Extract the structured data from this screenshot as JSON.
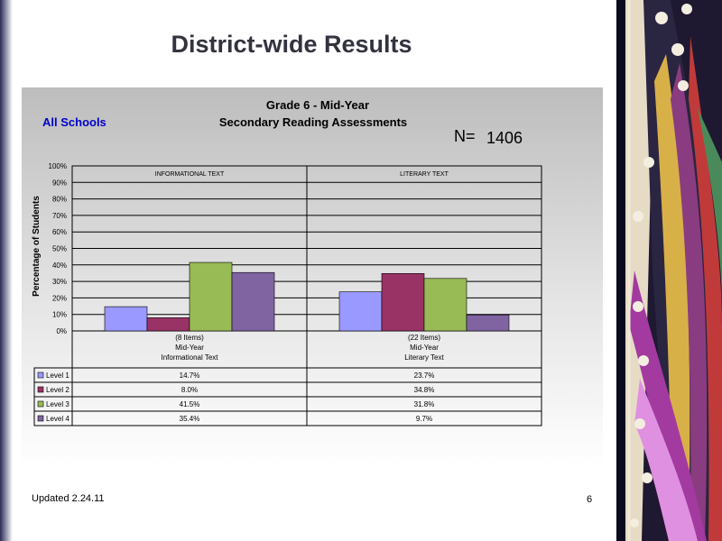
{
  "slide": {
    "title": "District-wide Results",
    "footer": "Updated  2.24.11",
    "page_number": "6"
  },
  "chart_data": {
    "type": "bar",
    "title": "Grade 6 - Mid-Year",
    "subtitle": "Secondary Reading Assessments",
    "scope_label": "All Schools",
    "n_label": "N=",
    "n_value": "1406",
    "ylabel": "Percentage of Students",
    "ylim": [
      0,
      100
    ],
    "yticks": [
      "0%",
      "10%",
      "20%",
      "30%",
      "40%",
      "50%",
      "60%",
      "70%",
      "80%",
      "90%",
      "100%"
    ],
    "grid": true,
    "groups": [
      {
        "header": "INFORMATIONAL TEXT",
        "items": "(8 Items)",
        "period": "Mid-Year",
        "name": "Informational Text"
      },
      {
        "header": "LITERARY TEXT",
        "items": "(22 Items)",
        "period": "Mid-Year",
        "name": "Literary Text"
      }
    ],
    "series": [
      {
        "name": "Level 1",
        "color": "#9999ff",
        "values": [
          14.7,
          23.7
        ],
        "labels": [
          "14.7%",
          "23.7%"
        ]
      },
      {
        "name": "Level 2",
        "color": "#993366",
        "values": [
          8.0,
          34.8
        ],
        "labels": [
          "8.0%",
          "34.8%"
        ]
      },
      {
        "name": "Level 3",
        "color": "#99bb55",
        "values": [
          41.5,
          31.8
        ],
        "labels": [
          "41.5%",
          "31.8%"
        ]
      },
      {
        "name": "Level 4",
        "color": "#8064a2",
        "values": [
          35.4,
          9.7
        ],
        "labels": [
          "35.4%",
          "9.7%"
        ]
      }
    ]
  }
}
